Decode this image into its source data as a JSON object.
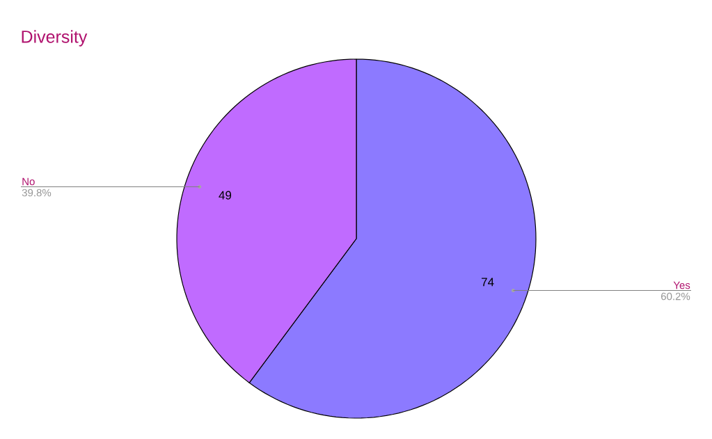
{
  "chart_data": {
    "type": "pie",
    "title": "Diversity",
    "categories": [
      "Yes",
      "No"
    ],
    "values": [
      74,
      49
    ],
    "colors": [
      "#8c7aff",
      "#c06bff"
    ],
    "value_labels": [
      "74",
      "49"
    ],
    "annotations": [
      "60.2%",
      "39.8%"
    ]
  }
}
